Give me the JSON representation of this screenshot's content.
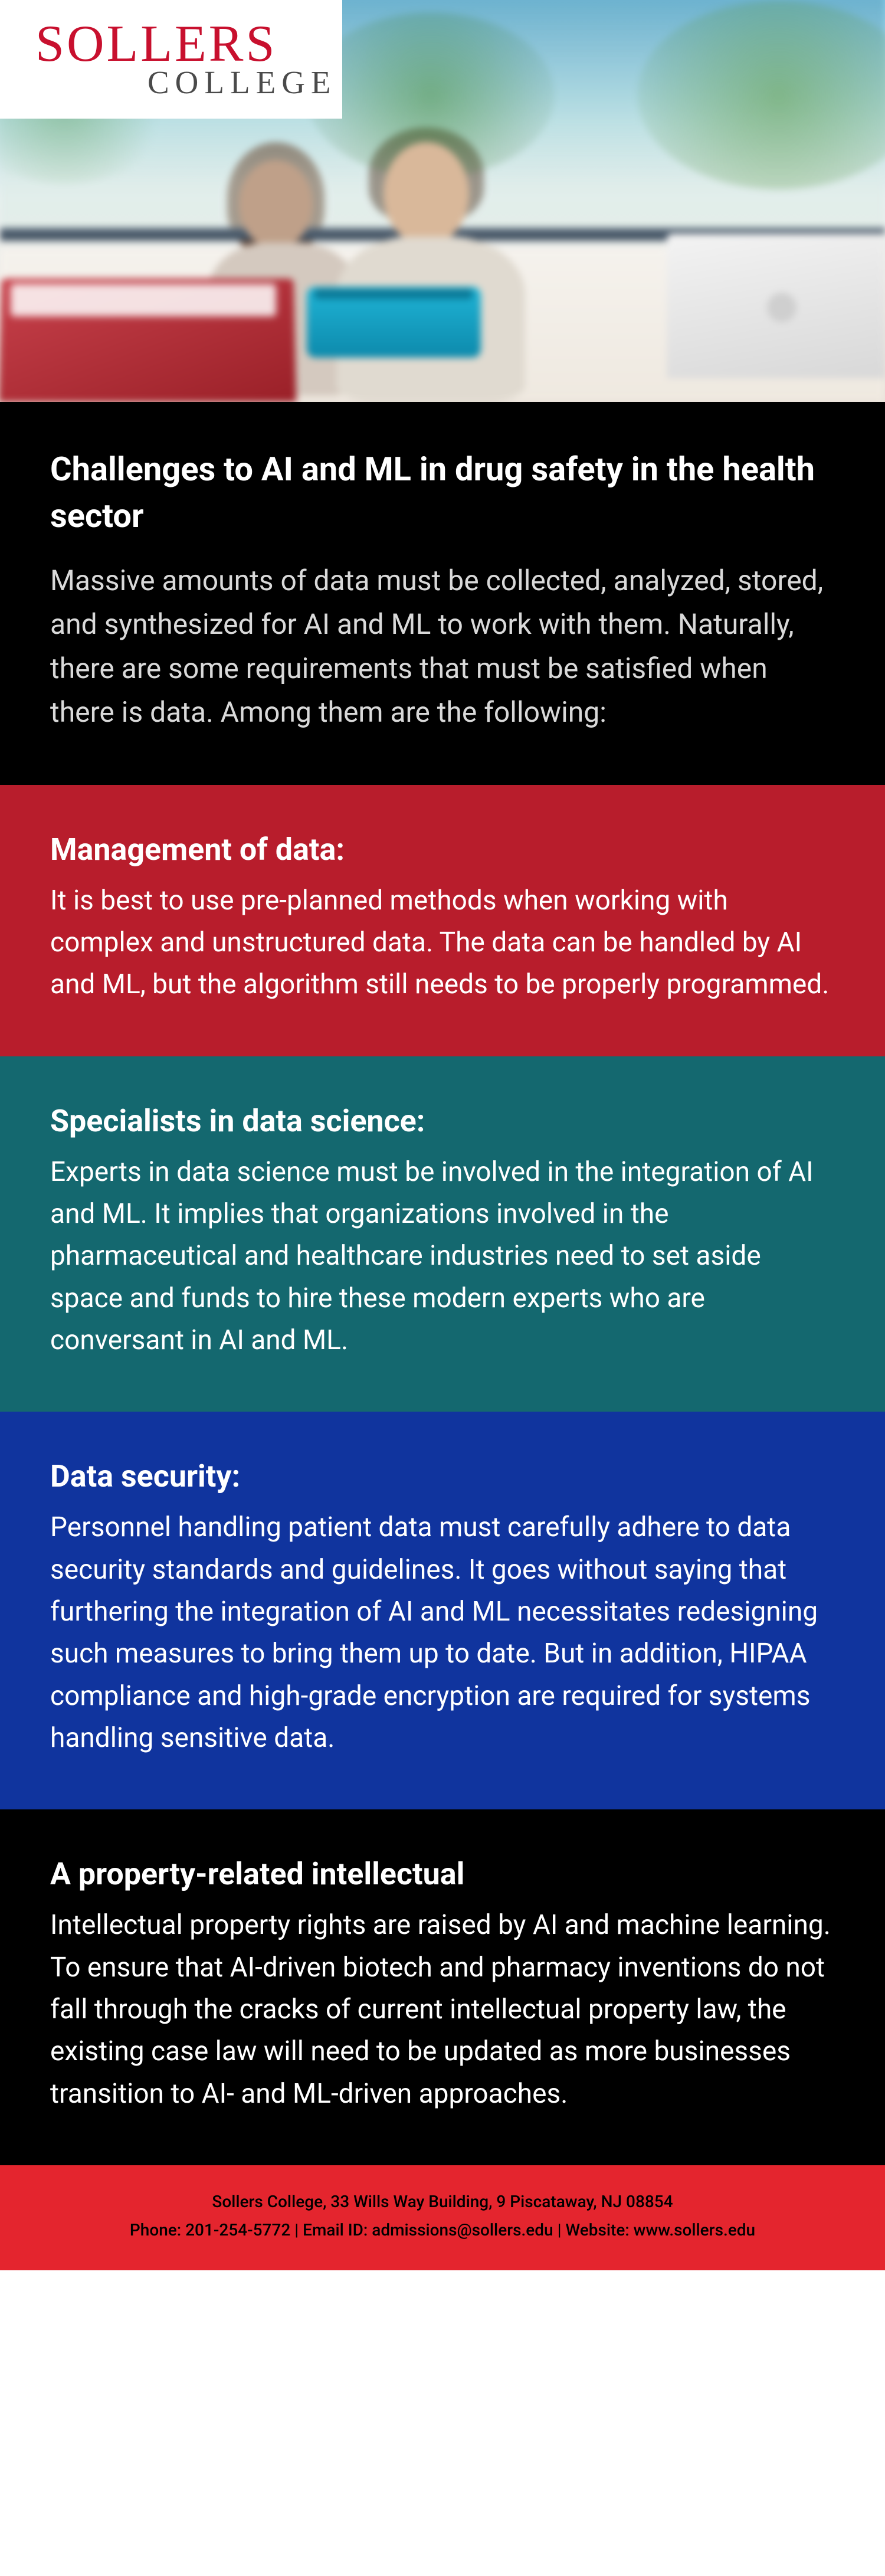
{
  "logo": {
    "main": "SOLLERS",
    "sub": "COLLEGE"
  },
  "intro": {
    "title": "Challenges to AI and ML in drug safety in the health sector",
    "body": "Massive amounts of data must be collected, analyzed, stored, and synthesized for AI and ML to work with them. Naturally, there are some requirements that must be satisfied when there is data. Among them are the following:"
  },
  "sections": [
    {
      "bg": "bg-red",
      "heading": "Management of data:",
      "body": "It is best to use pre-planned methods when working with complex and unstructured data. The data can be handled by AI and ML, but the algorithm still needs to be properly programmed."
    },
    {
      "bg": "bg-teal",
      "heading": "Specialists in data science:",
      "body": "Experts in data science must be involved in the integration of AI and ML. It implies that organizations involved in the pharmaceutical and healthcare industries need to set aside space and funds to hire these modern experts who are conversant in AI and ML."
    },
    {
      "bg": "bg-blue",
      "heading": "Data security:",
      "body": "Personnel handling patient data must carefully adhere to data security standards and guidelines. It goes without saying that furthering the integration of AI and ML necessitates redesigning such measures to bring them up to date. But in addition, HIPAA compliance and high-grade encryption are required for systems handling sensitive data."
    },
    {
      "bg": "bg-black",
      "heading": "A property-related intellectual",
      "body": "Intellectual property rights are raised by AI and machine learning. To ensure that AI-driven biotech and pharmacy inventions do not fall through the cracks of current intellectual property law, the existing case law will need to be updated as more businesses transition to AI- and ML-driven approaches."
    }
  ],
  "footer": {
    "line1": "Sollers College, 33 Wills Way Building, 9 Piscataway, NJ 08854",
    "line2": "Phone: 201-254-5772 | Email ID: admissions@sollers.edu | Website: www.sollers.edu"
  },
  "colors": {
    "logo_red": "#c8102e",
    "logo_gray": "#4a4a4a",
    "black": "#000000",
    "red": "#b81d2c",
    "teal": "#14686f",
    "blue": "#10349e",
    "footer_red": "#e4252e"
  }
}
